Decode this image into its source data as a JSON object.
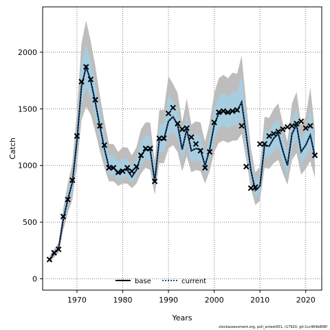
{
  "chart_data": {
    "type": "line",
    "xlabel": "Years",
    "ylabel": "Catch",
    "xlim": [
      1962.5,
      2023.5
    ],
    "ylim": [
      -100,
      2400
    ],
    "xticks": [
      1970,
      1980,
      1990,
      2000,
      2010,
      2020
    ],
    "yticks": [
      0,
      500,
      1000,
      1500,
      2000
    ],
    "grid": true,
    "grid_style": "dotted",
    "legend_position": "bottom-center",
    "legend": [
      "base",
      "current"
    ],
    "colors": {
      "base_line": "#000000",
      "current_line": "#1f4e8c",
      "outer_band": "#bdbdbd",
      "inner_band": "#a7cde0",
      "observed_marker": "#000000"
    },
    "x": [
      1964,
      1965,
      1966,
      1967,
      1968,
      1969,
      1970,
      1971,
      1972,
      1973,
      1974,
      1975,
      1976,
      1977,
      1978,
      1979,
      1980,
      1981,
      1982,
      1983,
      1984,
      1985,
      1986,
      1987,
      1988,
      1989,
      1990,
      1991,
      1992,
      1993,
      1994,
      1995,
      1996,
      1997,
      1998,
      1999,
      2000,
      2001,
      2002,
      2003,
      2004,
      2005,
      2006,
      2007,
      2008,
      2009,
      2010,
      2011,
      2012,
      2013,
      2014,
      2015,
      2016,
      2017,
      2018,
      2019,
      2020,
      2021,
      2022
    ],
    "series": [
      {
        "name": "base",
        "values": [
          170,
          220,
          270,
          520,
          700,
          850,
          1220,
          1700,
          1870,
          1750,
          1560,
          1350,
          1150,
          980,
          980,
          930,
          960,
          960,
          900,
          960,
          1090,
          1140,
          1140,
          860,
          1230,
          1230,
          1390,
          1430,
          1360,
          1140,
          1320,
          1130,
          1150,
          1140,
          1000,
          1140,
          1360,
          1460,
          1480,
          1460,
          1480,
          1480,
          1560,
          1270,
          960,
          780,
          820,
          1180,
          1170,
          1240,
          1280,
          1130,
          1000,
          1280,
          1360,
          1120,
          1180,
          1270,
          1080
        ]
      },
      {
        "name": "current",
        "values": [
          170,
          220,
          270,
          520,
          700,
          850,
          1220,
          1700,
          1870,
          1750,
          1560,
          1350,
          1150,
          980,
          980,
          930,
          960,
          960,
          900,
          960,
          1090,
          1140,
          1140,
          860,
          1230,
          1230,
          1390,
          1430,
          1360,
          1140,
          1320,
          1130,
          1150,
          1140,
          1000,
          1140,
          1360,
          1460,
          1480,
          1460,
          1480,
          1480,
          1560,
          1270,
          960,
          780,
          820,
          1180,
          1170,
          1240,
          1280,
          1130,
          1000,
          1280,
          1360,
          1120,
          1180,
          1270,
          1080
        ]
      }
    ],
    "outer_band": {
      "lower": [
        140,
        190,
        230,
        430,
        580,
        700,
        1000,
        1400,
        1520,
        1450,
        1300,
        1130,
        980,
        860,
        860,
        820,
        840,
        840,
        800,
        840,
        930,
        980,
        960,
        740,
        1020,
        1020,
        1150,
        1180,
        1120,
        950,
        1080,
        940,
        960,
        950,
        840,
        950,
        1120,
        1200,
        1220,
        1200,
        1220,
        1220,
        1280,
        1050,
        800,
        650,
        690,
        980,
        970,
        1020,
        1050,
        930,
        830,
        1050,
        1110,
        920,
        970,
        1040,
        890
      ],
      "upper": [
        200,
        260,
        320,
        620,
        840,
        1020,
        1480,
        2080,
        2280,
        2100,
        1880,
        1620,
        1390,
        1190,
        1190,
        1120,
        1160,
        1160,
        1090,
        1160,
        1320,
        1380,
        1380,
        1040,
        1490,
        1490,
        1790,
        1720,
        1640,
        1380,
        1590,
        1360,
        1390,
        1380,
        1210,
        1380,
        1640,
        1770,
        1800,
        1770,
        1820,
        1810,
        1970,
        1540,
        1160,
        940,
        990,
        1430,
        1420,
        1500,
        1550,
        1370,
        1210,
        1550,
        1650,
        1360,
        1430,
        1690,
        1310
      ]
    },
    "inner_band": {
      "lower": [
        155,
        205,
        250,
        470,
        640,
        775,
        1110,
        1550,
        1690,
        1600,
        1430,
        1240,
        1060,
        920,
        920,
        870,
        900,
        900,
        850,
        900,
        1010,
        1060,
        1050,
        800,
        1120,
        1120,
        1270,
        1300,
        1240,
        1040,
        1200,
        1030,
        1050,
        1040,
        920,
        1040,
        1240,
        1330,
        1350,
        1330,
        1350,
        1350,
        1420,
        1160,
        880,
        715,
        755,
        1080,
        1070,
        1130,
        1165,
        1030,
        915,
        1165,
        1235,
        1020,
        1075,
        1155,
        985
      ],
      "upper": [
        185,
        240,
        295,
        570,
        770,
        935,
        1350,
        1900,
        2070,
        1920,
        1720,
        1480,
        1270,
        1090,
        1090,
        1030,
        1060,
        1060,
        995,
        1060,
        1210,
        1260,
        1260,
        950,
        1360,
        1360,
        1620,
        1570,
        1500,
        1260,
        1450,
        1240,
        1270,
        1260,
        1100,
        1260,
        1500,
        1610,
        1640,
        1610,
        1650,
        1650,
        1790,
        1400,
        1060,
        860,
        905,
        1310,
        1300,
        1370,
        1415,
        1250,
        1110,
        1415,
        1505,
        1240,
        1305,
        1525,
        1195
      ]
    },
    "observed": [
      170,
      230,
      260,
      550,
      700,
      870,
      1260,
      1740,
      1870,
      1760,
      1580,
      1350,
      1180,
      980,
      980,
      940,
      950,
      980,
      950,
      990,
      1090,
      1150,
      1150,
      860,
      1240,
      1240,
      1460,
      1510,
      1370,
      1320,
      1330,
      1250,
      1190,
      1130,
      980,
      1120,
      1380,
      1470,
      1480,
      1470,
      1480,
      1490,
      1350,
      990,
      800,
      810,
      1190,
      1190,
      1260,
      1280,
      1300,
      1320,
      1340,
      1350,
      1370,
      1390,
      1330,
      1350,
      1090
    ]
  },
  "footer": {
    "text": "stockassessment.org, poll_antest001, r17920, git:1cc464b808f"
  }
}
